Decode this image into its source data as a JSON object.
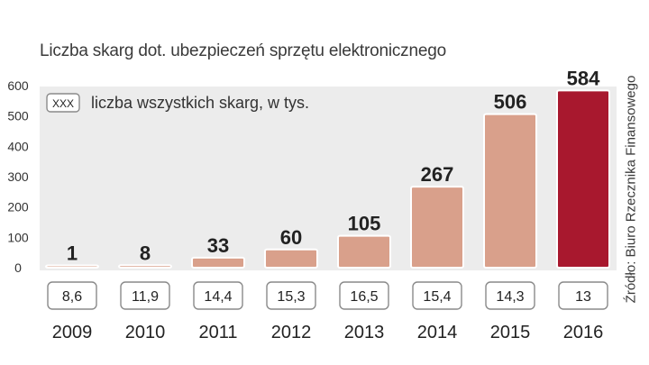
{
  "title": "Liczba skarg dot. ubezpieczeń sprzętu elektronicznego",
  "source": "Źródło: Biuro Rzecznika Finansowego",
  "colors": {
    "bar": "#d9a08b",
    "bar_highlight": "#a8182e",
    "panel": "#ececec",
    "text": "#222222"
  },
  "chart_data": {
    "type": "bar",
    "title": "Liczba skarg dot. ubezpieczeń sprzętu elektronicznego",
    "categories": [
      "2009",
      "2010",
      "2011",
      "2012",
      "2013",
      "2014",
      "2015",
      "2016"
    ],
    "series": [
      {
        "name": "Liczba skarg",
        "values": [
          1,
          8,
          33,
          60,
          105,
          267,
          506,
          584
        ],
        "labels": [
          "1",
          "8",
          "33",
          "60",
          "105",
          "267",
          "506",
          "584"
        ]
      },
      {
        "name": "liczba wszystkich skarg, w tys.",
        "values": [
          8.6,
          11.9,
          14.4,
          15.3,
          16.5,
          15.4,
          14.3,
          13
        ],
        "labels": [
          "8,6",
          "11,9",
          "14,4",
          "15,3",
          "16,5",
          "15,4",
          "14,3",
          "13"
        ]
      }
    ],
    "highlight_index": 7,
    "yticks": [
      0,
      100,
      200,
      300,
      400,
      500,
      600
    ],
    "ylim": [
      0,
      600
    ],
    "xlabel": "",
    "ylabel": "",
    "legend": {
      "box_label": "XXX",
      "text": "liczba wszystkich skarg, w tys.",
      "position": "top-left"
    },
    "grid": false
  }
}
